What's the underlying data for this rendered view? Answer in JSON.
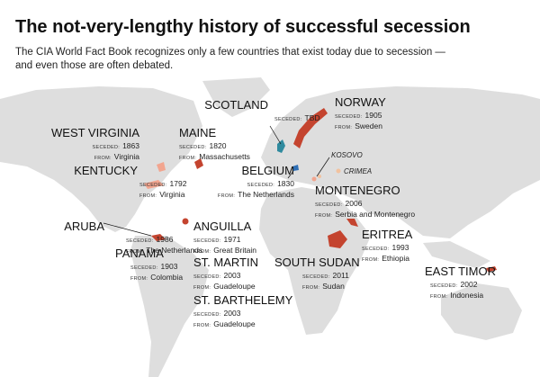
{
  "header": {
    "title": "The not-very-lengthy history of successful secession",
    "subtitle_lines": [
      "The CIA World Fact Book recognizes only a few countries that exist today due to secession —",
      "and even those are often debated."
    ]
  },
  "seceded_label": "SECEDED:",
  "from_label": "FROM:",
  "entries": [
    {
      "name": "SCOTLAND",
      "seceded": "TBD"
    },
    {
      "name": "NORWAY",
      "seceded": 1905,
      "from": "Sweden"
    },
    {
      "name": "WEST VIRGINIA",
      "seceded": 1863,
      "from": "Virginia"
    },
    {
      "name": "MAINE",
      "seceded": 1820,
      "from": "Massachusetts"
    },
    {
      "name": "KENTUCKY",
      "seceded": 1792,
      "from": "Virginia"
    },
    {
      "name": "BELGIUM",
      "seceded": 1830,
      "from": "The Netherlands"
    },
    {
      "name": "MONTENEGRO",
      "seceded": 2006,
      "from": "Serbia and Montenegro"
    },
    {
      "name": "ARUBA",
      "seceded": 1986,
      "from": "The Netherlands"
    },
    {
      "name": "ANGUILLA",
      "seceded": 1971,
      "from": "Great Britain"
    },
    {
      "name": "PANAMA",
      "seceded": 1903,
      "from": "Colombia"
    },
    {
      "name": "ST. MARTIN",
      "seceded": 2003,
      "from": "Guadeloupe"
    },
    {
      "name": "SOUTH SUDAN",
      "seceded": 2011,
      "from": "Sudan"
    },
    {
      "name": "ERITREA",
      "seceded": 1993,
      "from": "Ethiopia"
    },
    {
      "name": "ST. BARTHELEMY",
      "seceded": 2003,
      "from": "Guadeloupe"
    },
    {
      "name": "EAST TIMOR",
      "seceded": 2002,
      "from": "Indonesia"
    }
  ],
  "annotations": [
    "KOSOVO",
    "CRIMEA"
  ]
}
